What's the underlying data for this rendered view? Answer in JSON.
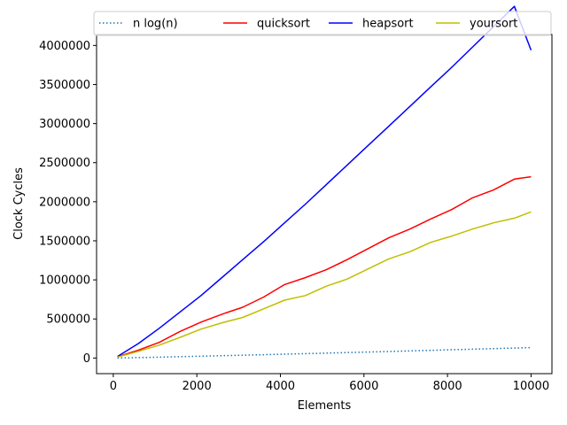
{
  "chart_data": {
    "type": "line",
    "title": "",
    "xlabel": "Elements",
    "ylabel": "Clock Cycles",
    "xlim": [
      -400,
      10500
    ],
    "ylim": [
      -200000,
      4140000
    ],
    "xticks": [
      0,
      2000,
      4000,
      6000,
      8000,
      10000
    ],
    "xtick_labels": [
      "0",
      "2000",
      "4000",
      "6000",
      "8000",
      "10000"
    ],
    "yticks": [
      0,
      500000,
      1000000,
      1500000,
      2000000,
      2500000,
      3000000,
      3500000,
      4000000
    ],
    "ytick_labels": [
      "0",
      "500000",
      "1000000",
      "1500000",
      "2000000",
      "2500000",
      "3000000",
      "3500000",
      "4000000"
    ],
    "grid": false,
    "legend_placement": "top",
    "x": [
      100,
      600,
      1100,
      1600,
      2100,
      2600,
      3100,
      3600,
      4100,
      4600,
      5100,
      5600,
      6100,
      6600,
      7100,
      7600,
      8100,
      8600,
      9100,
      9600,
      10000
    ],
    "series": [
      {
        "name": "n log(n)",
        "color": "#1f77b4",
        "style": "dotted",
        "values": [
          664,
          5537,
          11091,
          17034,
          23187,
          29580,
          36100,
          42610,
          49200,
          55860,
          62660,
          69580,
          76690,
          83730,
          90900,
          98150,
          105470,
          112860,
          120300,
          127800,
          132880
        ]
      },
      {
        "name": "quicksort",
        "color": "#ff0000",
        "style": "solid",
        "values": [
          15000,
          100000,
          200000,
          340000,
          460000,
          560000,
          650000,
          780000,
          940000,
          1030000,
          1130000,
          1260000,
          1400000,
          1540000,
          1650000,
          1780000,
          1900000,
          2050000,
          2150000,
          2290000,
          2320000
        ]
      },
      {
        "name": "heapsort",
        "color": "#0000ff",
        "style": "solid",
        "values": [
          20000,
          185000,
          380000,
          590000,
          800000,
          1030000,
          1260000,
          1490000,
          1730000,
          1970000,
          2220000,
          2470000,
          2720000,
          2970000,
          3220000,
          3470000,
          3720000,
          3980000,
          4240000,
          4500000,
          3940000
        ]
      },
      {
        "name": "yoursort",
        "color": "#bfbf00",
        "style": "solid",
        "values": [
          12000,
          85000,
          165000,
          265000,
          370000,
          450000,
          520000,
          630000,
          740000,
          800000,
          920000,
          1010000,
          1140000,
          1270000,
          1360000,
          1480000,
          1560000,
          1650000,
          1730000,
          1790000,
          1870000
        ]
      }
    ]
  }
}
